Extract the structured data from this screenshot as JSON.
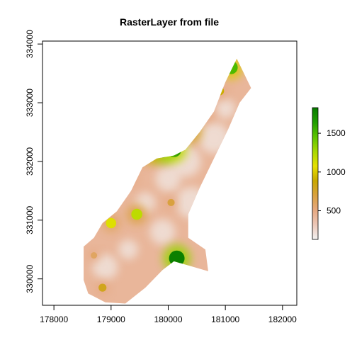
{
  "chart_data": {
    "type": "heatmap",
    "title": "RasterLayer from file",
    "xlabel": "",
    "ylabel": "",
    "xlim": [
      177800,
      182250
    ],
    "ylim": [
      329550,
      334050
    ],
    "x_ticks": [
      {
        "value": 178000,
        "label": "178000"
      },
      {
        "value": 179000,
        "label": "179000"
      },
      {
        "value": 180000,
        "label": "180000"
      },
      {
        "value": 181000,
        "label": "181000"
      },
      {
        "value": 182000,
        "label": "182000"
      }
    ],
    "y_ticks": [
      {
        "value": 330000,
        "label": "330000"
      },
      {
        "value": 331000,
        "label": "331000"
      },
      {
        "value": 332000,
        "label": "332000"
      },
      {
        "value": 333000,
        "label": "333000"
      },
      {
        "value": 334000,
        "label": "334000"
      }
    ],
    "colorbar": {
      "range": [
        130,
        1830
      ],
      "ticks": [
        {
          "value": 500,
          "label": "500"
        },
        {
          "value": 1000,
          "label": "1000"
        },
        {
          "value": 1500,
          "label": "1500"
        }
      ],
      "colors": [
        "#f2f2f2",
        "#ecc7b8",
        "#e6a880",
        "#d9a140",
        "#c8a800",
        "#e6e000",
        "#a8d800",
        "#5cc400",
        "#1f9d00",
        "#077a00"
      ]
    },
    "raster_outline": [
      [
        178520,
        329980
      ],
      [
        178520,
        330550
      ],
      [
        178700,
        330700
      ],
      [
        178850,
        330950
      ],
      [
        179100,
        331150
      ],
      [
        179350,
        331500
      ],
      [
        179550,
        331900
      ],
      [
        179800,
        332050
      ],
      [
        180100,
        332100
      ],
      [
        180300,
        332200
      ],
      [
        180550,
        332500
      ],
      [
        180800,
        332850
      ],
      [
        181000,
        333350
      ],
      [
        181200,
        333750
      ],
      [
        181450,
        333250
      ],
      [
        181250,
        333000
      ],
      [
        181050,
        332550
      ],
      [
        180800,
        332050
      ],
      [
        180550,
        331550
      ],
      [
        180350,
        331100
      ],
      [
        180350,
        330700
      ],
      [
        180650,
        330500
      ],
      [
        180700,
        330130
      ],
      [
        180100,
        330300
      ],
      [
        179900,
        330150
      ],
      [
        179600,
        329850
      ],
      [
        179250,
        329580
      ],
      [
        178900,
        329600
      ],
      [
        178600,
        329750
      ]
    ],
    "hotspots": [
      {
        "x": 181100,
        "y": 333600,
        "value": 1500
      },
      {
        "x": 180900,
        "y": 333200,
        "value": 900
      },
      {
        "x": 180650,
        "y": 332800,
        "value": 1000
      },
      {
        "x": 180400,
        "y": 332500,
        "value": 1300
      },
      {
        "x": 180100,
        "y": 332200,
        "value": 1700
      },
      {
        "x": 179900,
        "y": 332200,
        "value": 1800
      },
      {
        "x": 179700,
        "y": 332150,
        "value": 1400
      },
      {
        "x": 179500,
        "y": 332050,
        "value": 1000
      },
      {
        "x": 179350,
        "y": 331700,
        "value": 800
      },
      {
        "x": 179450,
        "y": 331100,
        "value": 1200
      },
      {
        "x": 179000,
        "y": 330950,
        "value": 1100
      },
      {
        "x": 180150,
        "y": 330350,
        "value": 1800
      },
      {
        "x": 178850,
        "y": 329850,
        "value": 800
      },
      {
        "x": 178700,
        "y": 330400,
        "value": 600
      },
      {
        "x": 180050,
        "y": 331300,
        "value": 700
      }
    ]
  }
}
